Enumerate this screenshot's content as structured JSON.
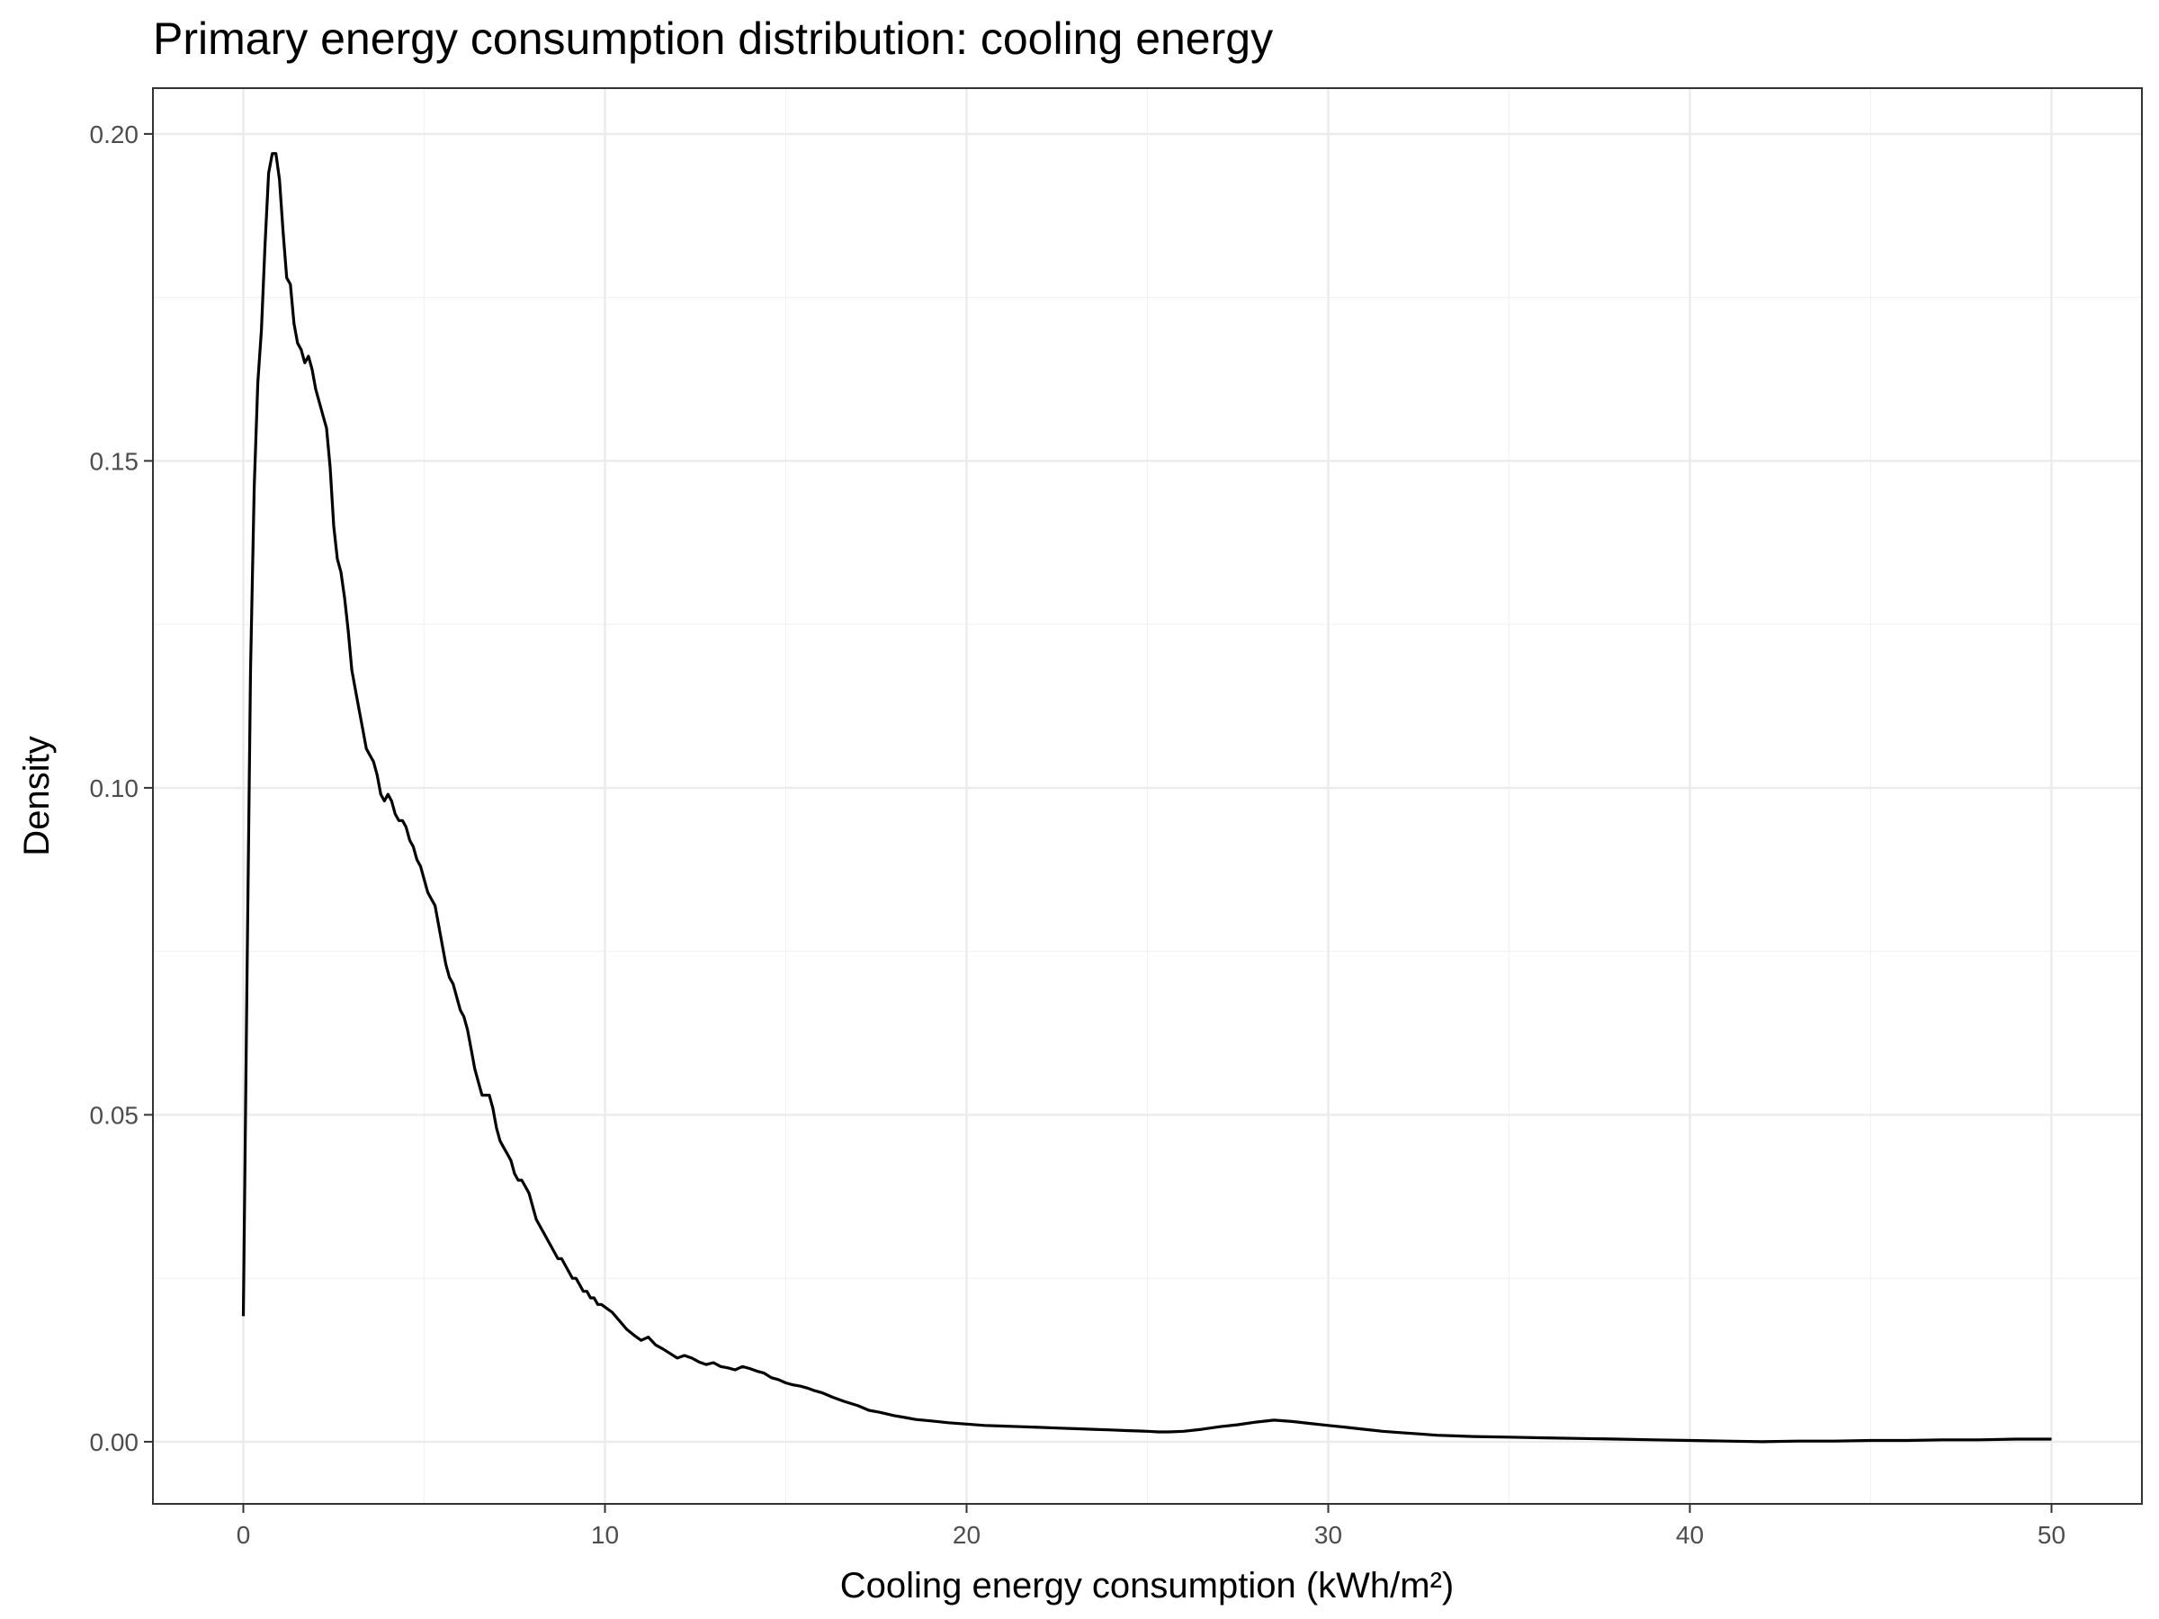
{
  "chart_data": {
    "type": "line",
    "title": "Primary energy consumption distribution: cooling energy",
    "xlabel": "Cooling energy consumption (kWh/m²)",
    "ylabel": "Density",
    "xlim": [
      -2.5,
      52.5
    ],
    "ylim": [
      -0.0095,
      0.207
    ],
    "x_ticks": [
      0,
      10,
      20,
      30,
      40,
      50
    ],
    "y_ticks": [
      0.0,
      0.05,
      0.1,
      0.15,
      0.2
    ],
    "x_tick_labels": [
      "0",
      "10",
      "20",
      "30",
      "40",
      "50"
    ],
    "y_tick_labels": [
      "0.00",
      "0.05",
      "0.10",
      "0.15",
      "0.20"
    ],
    "grid": true,
    "legend": "none",
    "line_color": "#000000",
    "series": [
      {
        "x": [
          0,
          0.1,
          0.2,
          0.3,
          0.4,
          0.5,
          0.6,
          0.7,
          0.8,
          0.9,
          1.0,
          1.1,
          1.2,
          1.3,
          1.4,
          1.5,
          1.6,
          1.7,
          1.8,
          1.9,
          2.0,
          2.1,
          2.2,
          2.3,
          2.4,
          2.5,
          2.6,
          2.7,
          2.8,
          2.9,
          3.0,
          3.1,
          3.2,
          3.3,
          3.4,
          3.5,
          3.6,
          3.7,
          3.8,
          3.9,
          4.0,
          4.1,
          4.2,
          4.3,
          4.4,
          4.5,
          4.6,
          4.7,
          4.8,
          4.9,
          5.0,
          5.1,
          5.2,
          5.3,
          5.4,
          5.5,
          5.6,
          5.7,
          5.8,
          5.9,
          6.0,
          6.1,
          6.2,
          6.3,
          6.4,
          6.5,
          6.6,
          6.7,
          6.8,
          6.9,
          7.0,
          7.1,
          7.2,
          7.3,
          7.4,
          7.5,
          7.6,
          7.7,
          7.8,
          7.9,
          8.0,
          8.1,
          8.2,
          8.3,
          8.4,
          8.5,
          8.6,
          8.7,
          8.8,
          8.9,
          9.0,
          9.1,
          9.2,
          9.3,
          9.4,
          9.5,
          9.6,
          9.7,
          9.8,
          9.9,
          10.0,
          10.2,
          10.4,
          10.6,
          10.8,
          11.0,
          11.2,
          11.4,
          11.6,
          11.8,
          12.0,
          12.2,
          12.4,
          12.6,
          12.8,
          13.0,
          13.2,
          13.4,
          13.6,
          13.8,
          14.0,
          14.2,
          14.4,
          14.6,
          14.8,
          15.0,
          15.2,
          15.4,
          15.6,
          15.8,
          16.0,
          16.3,
          16.6,
          17.0,
          17.3,
          17.6,
          18.0,
          18.3,
          18.6,
          19.0,
          19.5,
          20.0,
          20.5,
          21.0,
          21.5,
          22.0,
          22.5,
          23.0,
          23.5,
          24.0,
          24.5,
          25.0,
          25.3,
          25.6,
          26.0,
          26.5,
          27.0,
          27.5,
          28.0,
          28.5,
          29.0,
          29.5,
          30.0,
          30.5,
          31.0,
          31.5,
          32.0,
          32.5,
          33.0,
          33.5,
          34.0,
          35.0,
          36.0,
          37.0,
          38.0,
          39.0,
          40.0,
          41.0,
          42.0,
          43.0,
          44.0,
          45.0,
          46.0,
          47.0,
          48.0,
          49.0,
          50.0
        ],
        "y": [
          0.0192,
          0.07,
          0.118,
          0.146,
          0.162,
          0.17,
          0.183,
          0.194,
          0.197,
          0.197,
          0.193,
          0.185,
          0.178,
          0.177,
          0.171,
          0.168,
          0.167,
          0.165,
          0.166,
          0.164,
          0.161,
          0.159,
          0.157,
          0.155,
          0.149,
          0.14,
          0.135,
          0.133,
          0.129,
          0.124,
          0.118,
          0.115,
          0.112,
          0.109,
          0.106,
          0.105,
          0.104,
          0.102,
          0.099,
          0.098,
          0.099,
          0.098,
          0.096,
          0.095,
          0.095,
          0.094,
          0.092,
          0.091,
          0.089,
          0.088,
          0.086,
          0.084,
          0.083,
          0.082,
          0.079,
          0.076,
          0.073,
          0.071,
          0.07,
          0.068,
          0.066,
          0.065,
          0.063,
          0.06,
          0.057,
          0.055,
          0.053,
          0.053,
          0.053,
          0.051,
          0.048,
          0.046,
          0.045,
          0.044,
          0.043,
          0.041,
          0.04,
          0.04,
          0.039,
          0.038,
          0.036,
          0.034,
          0.033,
          0.032,
          0.031,
          0.03,
          0.029,
          0.028,
          0.028,
          0.027,
          0.026,
          0.025,
          0.025,
          0.024,
          0.023,
          0.023,
          0.022,
          0.022,
          0.021,
          0.021,
          0.0206,
          0.0198,
          0.0185,
          0.0172,
          0.0163,
          0.0155,
          0.016,
          0.0148,
          0.0142,
          0.0135,
          0.0128,
          0.0132,
          0.0128,
          0.0122,
          0.0118,
          0.0121,
          0.0115,
          0.0113,
          0.011,
          0.0115,
          0.0112,
          0.0108,
          0.0105,
          0.0098,
          0.0095,
          0.009,
          0.0087,
          0.0085,
          0.0082,
          0.0078,
          0.0075,
          0.0068,
          0.0062,
          0.0055,
          0.0048,
          0.0045,
          0.004,
          0.0037,
          0.0034,
          0.0032,
          0.0029,
          0.0027,
          0.0025,
          0.0024,
          0.0023,
          0.0022,
          0.0021,
          0.002,
          0.0019,
          0.0018,
          0.0017,
          0.0016,
          0.0015,
          0.0015,
          0.0016,
          0.0019,
          0.0023,
          0.0026,
          0.003,
          0.0033,
          0.0031,
          0.0028,
          0.0025,
          0.0022,
          0.0019,
          0.0016,
          0.0014,
          0.0012,
          0.001,
          0.0009,
          0.0008,
          0.0007,
          0.0006,
          0.0005,
          0.0004,
          0.0003,
          0.0002,
          0.0001,
          0.0,
          0.0001,
          0.0001,
          0.0002,
          0.0002,
          0.0003,
          0.0003,
          0.0004,
          0.0004
        ]
      }
    ]
  }
}
